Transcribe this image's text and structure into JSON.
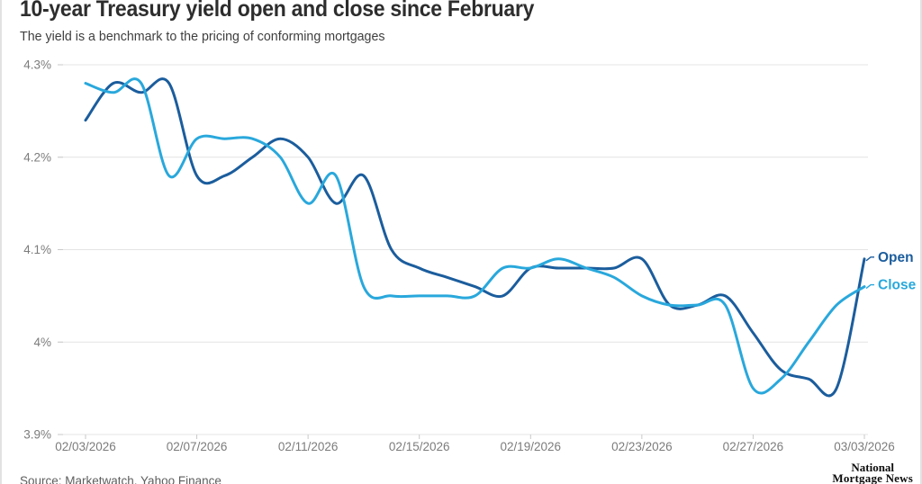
{
  "header": {
    "title": "10-year Treasury yield open and close since February",
    "subtitle": "The yield is a benchmark to the pricing of conforming mortgages"
  },
  "chart_data": {
    "type": "line",
    "title": "10-year Treasury yield open and close since February",
    "subtitle": "The yield is a benchmark to the pricing of conforming mortgages",
    "x": [
      "02/03",
      "02/04",
      "02/05",
      "02/06",
      "02/07",
      "02/08",
      "02/09",
      "02/10",
      "02/11",
      "02/12",
      "02/13",
      "02/14",
      "02/15",
      "02/16",
      "02/17",
      "02/18",
      "02/19",
      "02/20",
      "02/21",
      "02/22",
      "02/23",
      "02/24",
      "02/25",
      "02/26",
      "02/27",
      "02/28",
      "03/01",
      "03/02",
      "03/03"
    ],
    "series": [
      {
        "name": "Open",
        "color": "#1b5d9d",
        "values": [
          4.24,
          4.28,
          4.27,
          4.28,
          4.18,
          4.18,
          4.2,
          4.22,
          4.2,
          4.15,
          4.18,
          4.1,
          4.08,
          4.07,
          4.06,
          4.05,
          4.08,
          4.08,
          4.08,
          4.08,
          4.09,
          4.04,
          4.04,
          4.05,
          4.01,
          3.97,
          3.96,
          3.95,
          4.09
        ]
      },
      {
        "name": "Close",
        "color": "#29a8dc",
        "values": [
          4.28,
          4.27,
          4.28,
          4.18,
          4.22,
          4.22,
          4.22,
          4.2,
          4.15,
          4.18,
          4.06,
          4.05,
          4.05,
          4.05,
          4.05,
          4.08,
          4.08,
          4.09,
          4.08,
          4.07,
          4.05,
          4.04,
          4.04,
          4.04,
          3.95,
          3.96,
          4.0,
          4.04,
          4.06
        ]
      }
    ],
    "ylim": [
      3.9,
      4.3
    ],
    "ytick_values": [
      4.3,
      4.2,
      4.1,
      4.0,
      3.9
    ],
    "ytick_labels": [
      "4.3%",
      "4.2%",
      "4.1%",
      "4%",
      "3.9%"
    ],
    "xtick_indices": [
      0,
      4,
      8,
      12,
      16,
      20,
      24,
      28
    ],
    "xtick_labels": [
      "02/03/2026",
      "02/07/2026",
      "02/11/2026",
      "02/15/2026",
      "02/19/2026",
      "02/23/2026",
      "02/27/2026",
      "03/03/2026"
    ],
    "grid": "horizontal",
    "legend_position": "line-end",
    "axis_text_color": "#7c7c7c",
    "grid_color": "#e4e4e4",
    "tick_color": "#c9c9c9"
  },
  "footer": {
    "source": "Source: Marketwatch, Yahoo Finance",
    "logo": {
      "line1": "National",
      "line2": "Mortgage News"
    }
  }
}
